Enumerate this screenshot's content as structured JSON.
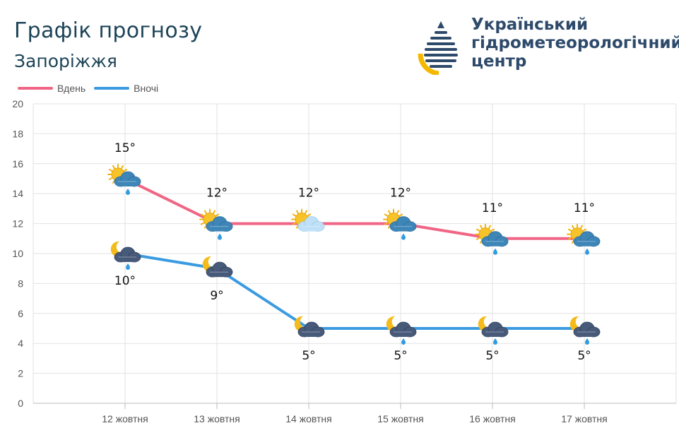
{
  "header": {
    "title": "Графік прогнозу",
    "city": "Запоріжжя"
  },
  "brand": {
    "line1": "Український",
    "line2": "гідрометеорологічний",
    "line3": "центр",
    "logo_icon": "drop-logo-icon"
  },
  "colors": {
    "day": "#f06585",
    "night": "#3b9be0",
    "grid": "#e2e2e2"
  },
  "chart_data": {
    "type": "line",
    "categories": [
      "12 жовтня",
      "13 жовтня",
      "14 жовтня",
      "15 жовтня",
      "16 жовтня",
      "17 жовтня"
    ],
    "series": [
      {
        "name": "Вдень",
        "values": [
          15,
          12,
          12,
          12,
          11,
          11
        ],
        "labels": [
          "15°",
          "12°",
          "12°",
          "12°",
          "11°",
          "11°"
        ],
        "icons": [
          "sun-cloud-rain-icon",
          "sun-cloud-rain-icon",
          "sun-cloud-icon",
          "sun-cloud-rain-icon",
          "sun-cloud-rain-icon",
          "sun-cloud-rain-icon"
        ]
      },
      {
        "name": "Вночі",
        "values": [
          10,
          9,
          5,
          5,
          5,
          5
        ],
        "labels": [
          "10°",
          "9°",
          "5°",
          "5°",
          "5°",
          "5°"
        ],
        "icons": [
          "moon-cloud-rain-icon",
          "moon-cloud-icon",
          "moon-cloud-icon",
          "moon-cloud-rain-icon",
          "moon-cloud-rain-icon",
          "moon-cloud-rain-icon"
        ]
      }
    ],
    "y_ticks": [
      "0",
      "2",
      "4",
      "6",
      "8",
      "10",
      "12",
      "14",
      "16",
      "18",
      "20"
    ],
    "ylim": [
      0,
      20
    ],
    "grid": true,
    "legend": "top-left"
  }
}
